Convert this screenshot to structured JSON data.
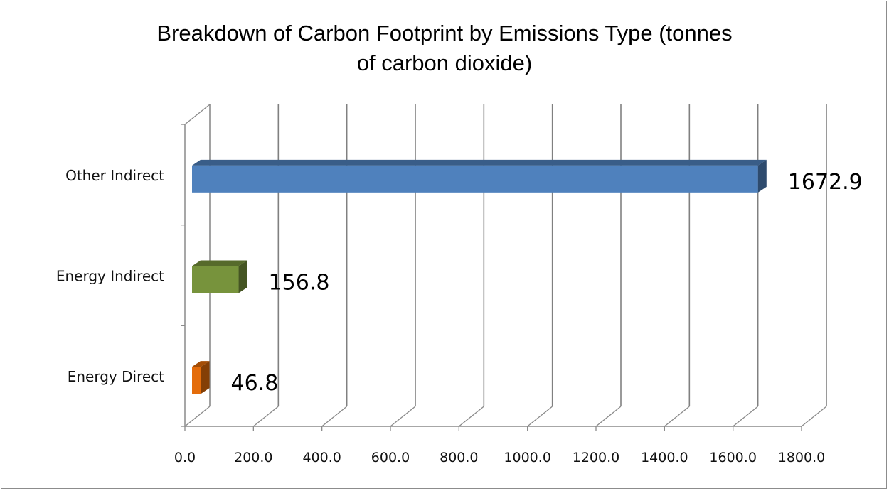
{
  "chart_data": {
    "type": "bar",
    "orientation": "horizontal",
    "style": "3d",
    "title_lines": [
      "Breakdown of Carbon Footprint by Emissions Type (tonnes",
      "of carbon dioxide)"
    ],
    "categories": [
      "Other Indirect",
      "Energy Indirect",
      "Energy Direct"
    ],
    "values": [
      1672.9,
      156.8,
      46.8
    ],
    "data_labels": [
      "1672.9",
      "156.8",
      "46.8"
    ],
    "colors": [
      "#4f81bd",
      "#77933c",
      "#e46c0a"
    ],
    "xlim": [
      0,
      1800
    ],
    "x_ticks": [
      0,
      200,
      400,
      600,
      800,
      1000,
      1200,
      1400,
      1600,
      1800
    ],
    "x_tick_labels": [
      "0.0",
      "200.0",
      "400.0",
      "600.0",
      "800.0",
      "1000.0",
      "1200.0",
      "1400.0",
      "1600.0",
      "1800.0"
    ],
    "grid": true,
    "legend": "none",
    "xlabel": "",
    "ylabel": ""
  }
}
